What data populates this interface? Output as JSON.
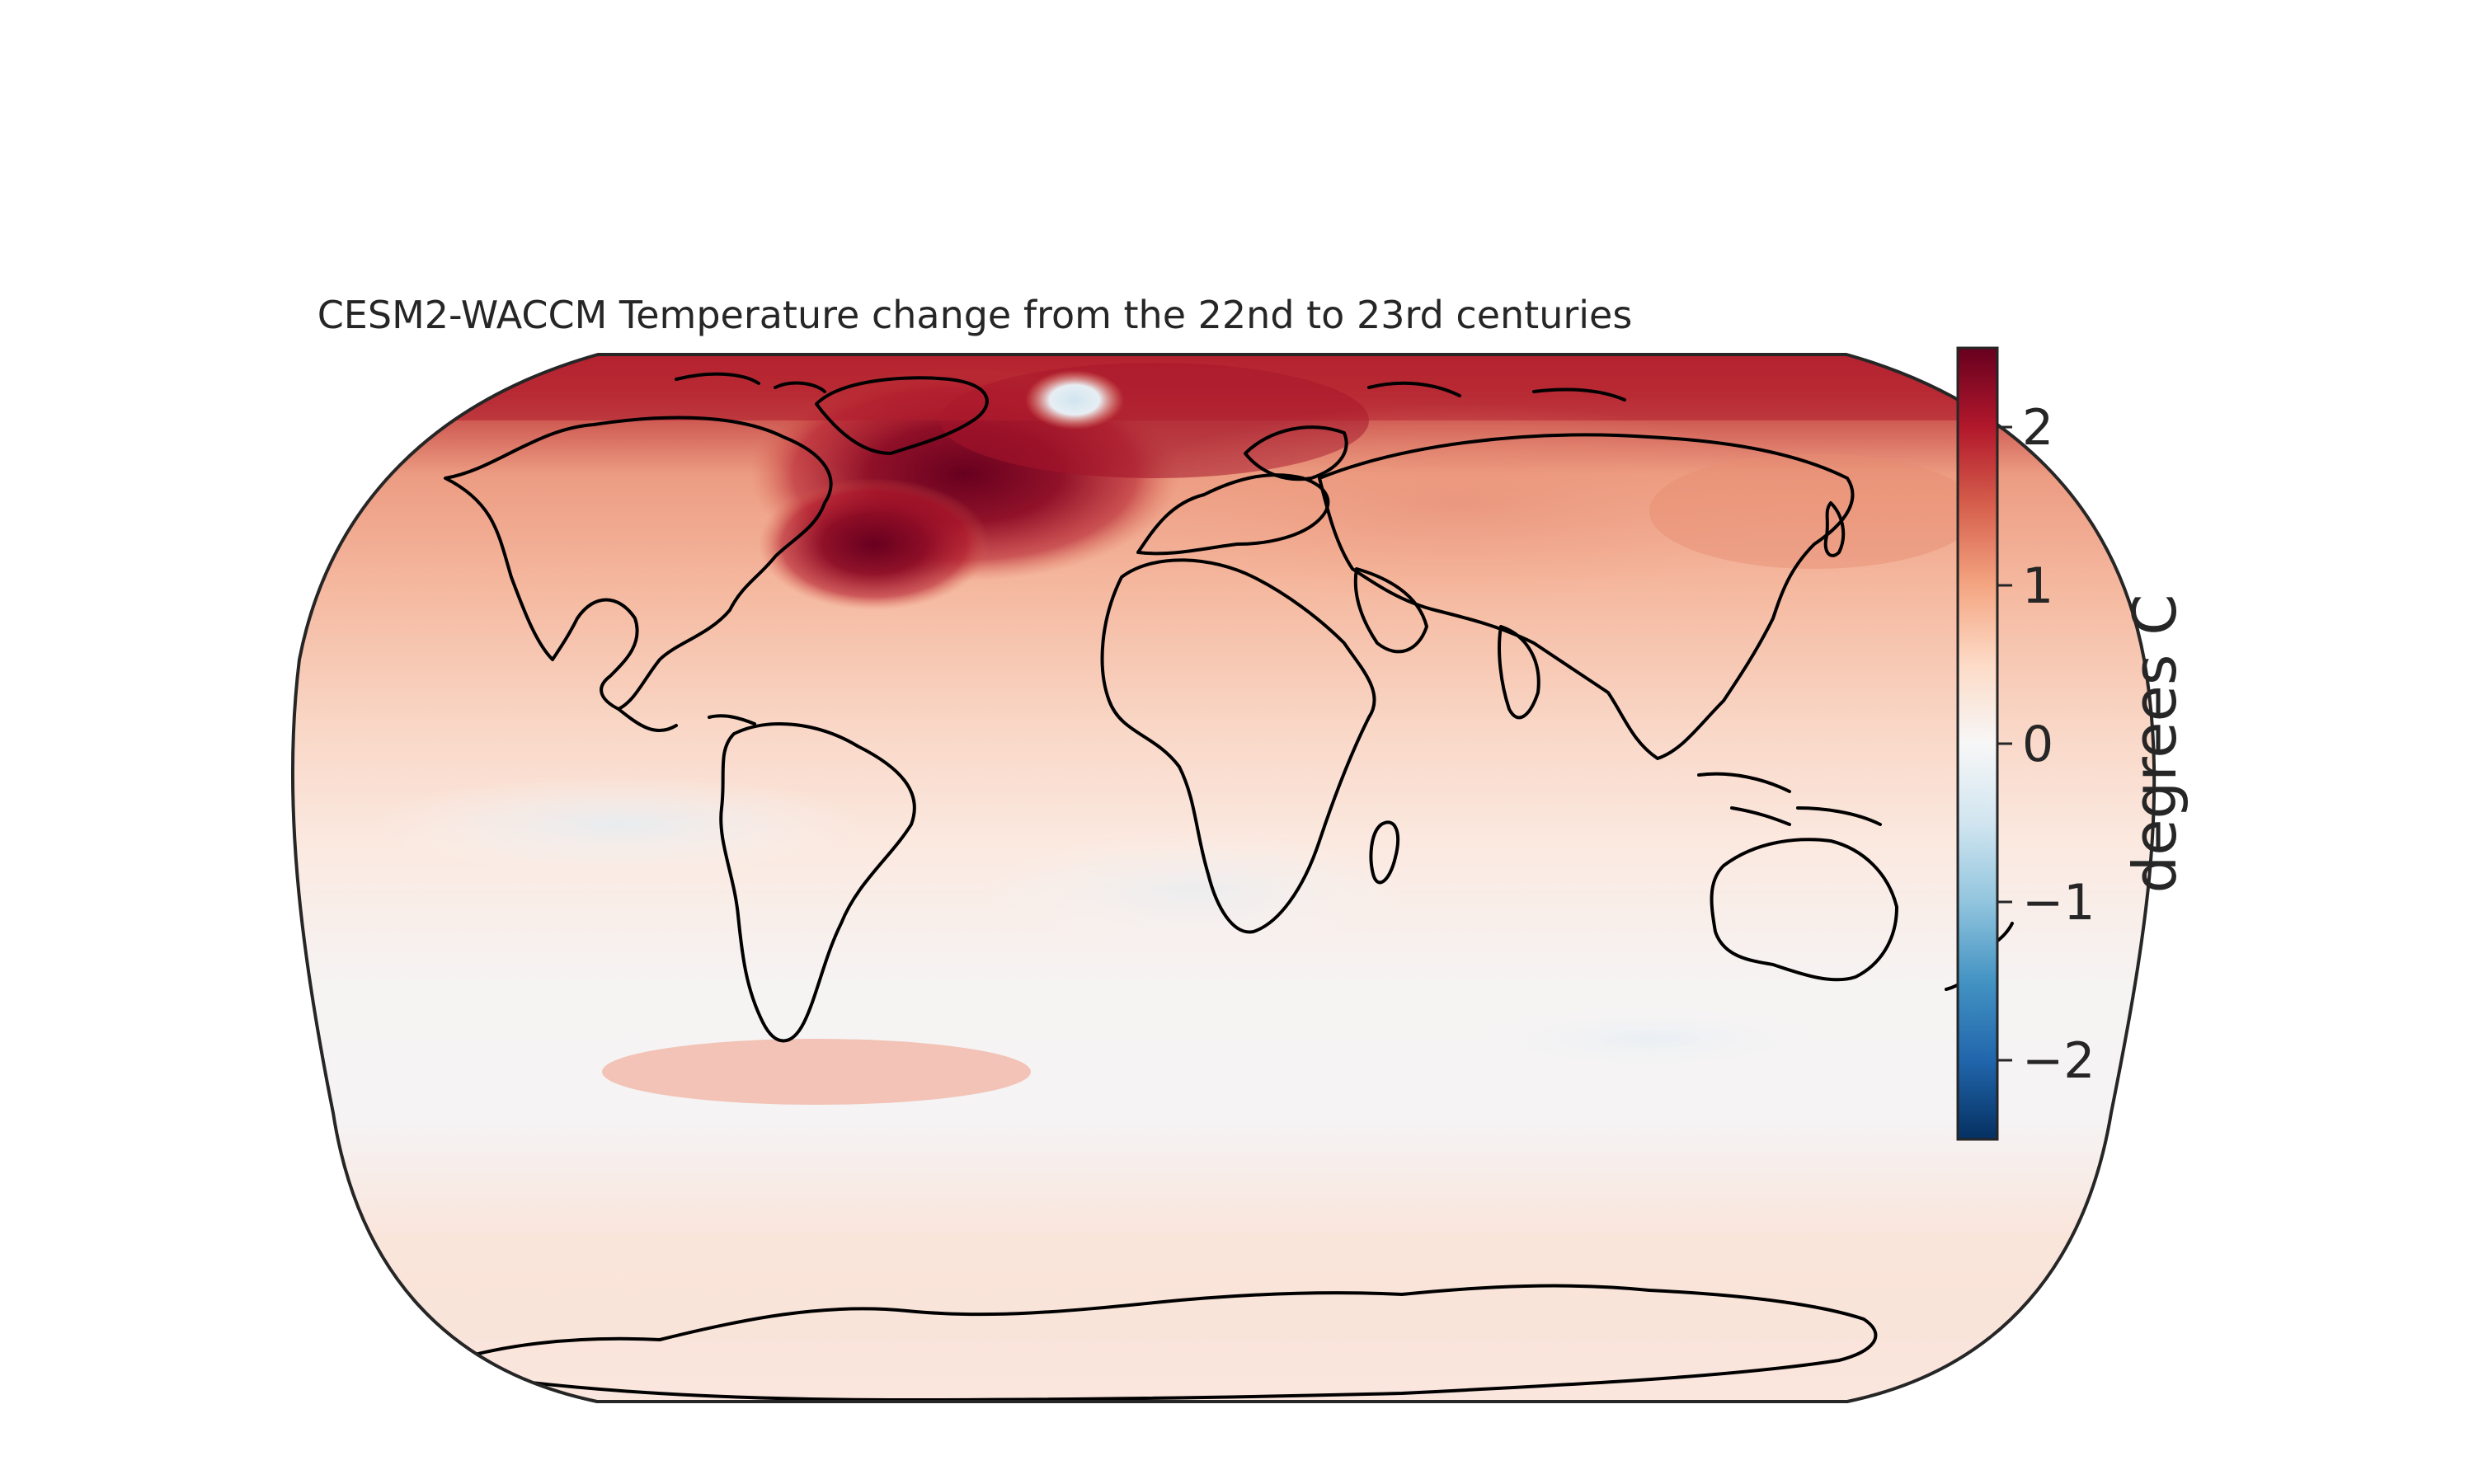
{
  "title": "CESM2-WACCM Temperature change from the 22nd to 23rd centuries",
  "colorbar": {
    "label": "degrees C",
    "ticks": [
      {
        "value": 2,
        "label": "2"
      },
      {
        "value": 1,
        "label": "1"
      },
      {
        "value": 0,
        "label": "0"
      },
      {
        "value": -1,
        "label": "−1"
      },
      {
        "value": -2,
        "label": "−2"
      }
    ],
    "range": [
      -2.5,
      2.5
    ],
    "colormap": "RdBu_r",
    "stops": [
      "#053061",
      "#2166ac",
      "#4393c3",
      "#92c5de",
      "#d1e5f0",
      "#f7f7f7",
      "#fddbc7",
      "#f4a582",
      "#d6604d",
      "#b2182b",
      "#67001f"
    ]
  },
  "map": {
    "projection": "Robinson",
    "variable": "temperature change",
    "units": "degrees C"
  }
}
